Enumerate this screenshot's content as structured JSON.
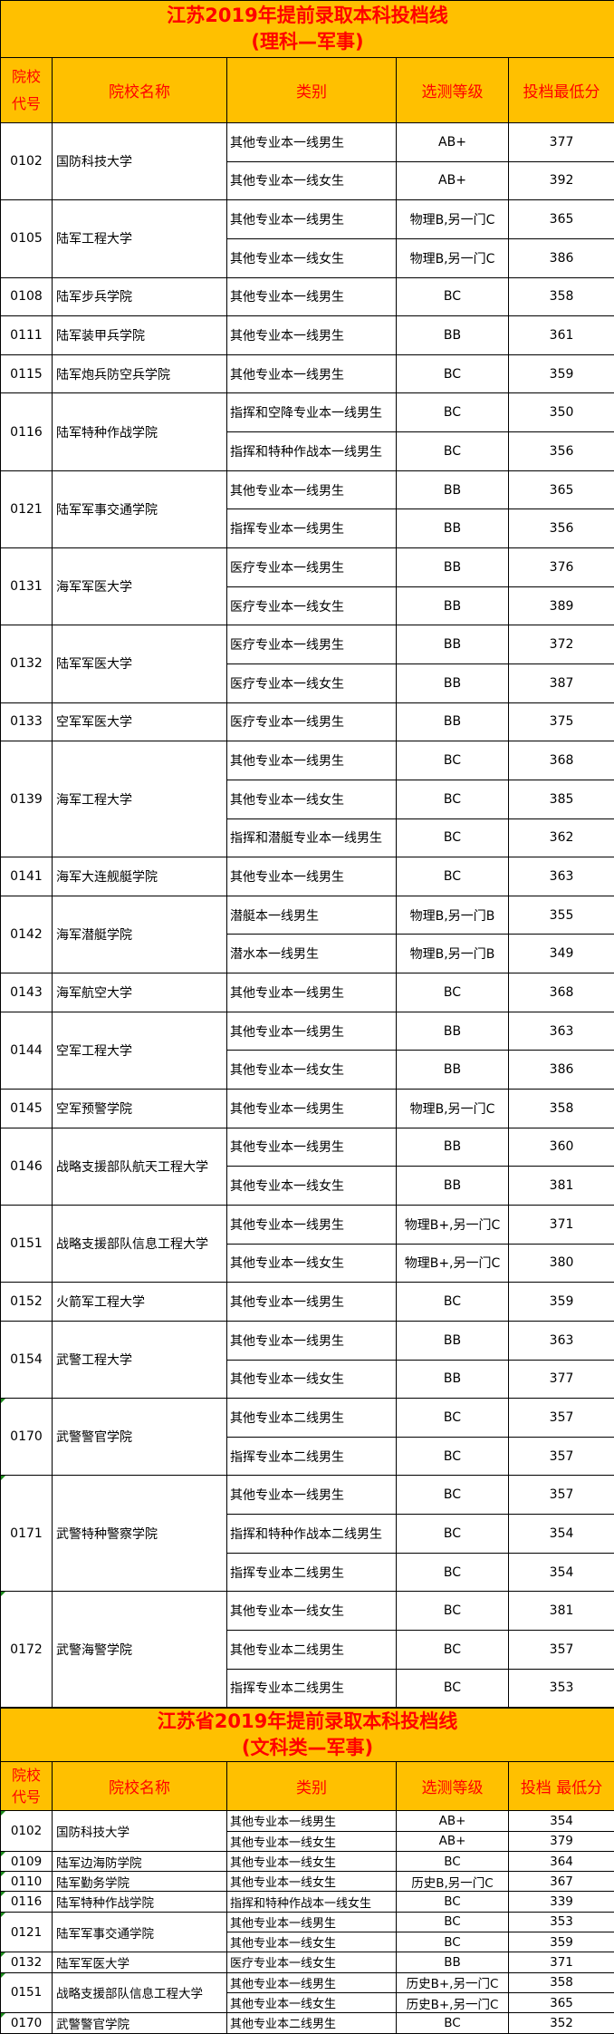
{
  "sections": [
    {
      "title_line1": "江苏2019年提前录取本科投档线",
      "title_line2": "(理科—军事)",
      "headers": {
        "code": "院校代号",
        "name": "院校名称",
        "category": "类别",
        "level": "选测等级",
        "score": "投档最低分"
      },
      "groups": [
        {
          "code": "0102",
          "name": "国防科技大学",
          "rows": [
            [
              "其他专业本一线男生",
              "AB+",
              "377"
            ],
            [
              "其他专业本一线女生",
              "AB+",
              "392"
            ]
          ]
        },
        {
          "code": "0105",
          "name": "陆军工程大学",
          "rows": [
            [
              "其他专业本一线男生",
              "物理B,另一门C",
              "365"
            ],
            [
              "其他专业本一线女生",
              "物理B,另一门C",
              "386"
            ]
          ]
        },
        {
          "code": "0108",
          "name": "陆军步兵学院",
          "rows": [
            [
              "其他专业本一线男生",
              "BC",
              "358"
            ]
          ]
        },
        {
          "code": "0111",
          "name": "陆军装甲兵学院",
          "rows": [
            [
              "其他专业本一线男生",
              "BB",
              "361"
            ]
          ]
        },
        {
          "code": "0115",
          "name": "陆军炮兵防空兵学院",
          "rows": [
            [
              "其他专业本一线男生",
              "BC",
              "359"
            ]
          ]
        },
        {
          "code": "0116",
          "name": "陆军特种作战学院",
          "rows": [
            [
              "指挥和空降专业本一线男生",
              "BC",
              "350"
            ],
            [
              "指挥和特种作战本一线男生",
              "BC",
              "356"
            ]
          ]
        },
        {
          "code": "0121",
          "name": "陆军军事交通学院",
          "rows": [
            [
              "其他专业本一线男生",
              "BB",
              "365"
            ],
            [
              "指挥专业本一线男生",
              "BB",
              "356"
            ]
          ]
        },
        {
          "code": "0131",
          "name": "海军军医大学",
          "rows": [
            [
              "医疗专业本一线男生",
              "BB",
              "376"
            ],
            [
              "医疗专业本一线女生",
              "BB",
              "389"
            ]
          ]
        },
        {
          "code": "0132",
          "name": "陆军军医大学",
          "rows": [
            [
              "医疗专业本一线男生",
              "BB",
              "372"
            ],
            [
              "医疗专业本一线女生",
              "BB",
              "387"
            ]
          ]
        },
        {
          "code": "0133",
          "name": "空军军医大学",
          "rows": [
            [
              "医疗专业本一线男生",
              "BB",
              "375"
            ]
          ]
        },
        {
          "code": "0139",
          "name": "海军工程大学",
          "rows": [
            [
              "其他专业本一线男生",
              "BC",
              "368"
            ],
            [
              "其他专业本一线女生",
              "BC",
              "385"
            ],
            [
              "指挥和潜艇专业本一线男生",
              "BC",
              "362"
            ]
          ]
        },
        {
          "code": "0141",
          "name": "海军大连舰艇学院",
          "rows": [
            [
              "其他专业本一线男生",
              "BC",
              "363"
            ]
          ]
        },
        {
          "code": "0142",
          "name": "海军潜艇学院",
          "rows": [
            [
              "潜艇本一线男生",
              "物理B,另一门B",
              "355"
            ],
            [
              "潜水本一线男生",
              "物理B,另一门B",
              "349"
            ]
          ]
        },
        {
          "code": "0143",
          "name": "海军航空大学",
          "rows": [
            [
              "其他专业本一线男生",
              "BC",
              "368"
            ]
          ]
        },
        {
          "code": "0144",
          "name": "空军工程大学",
          "rows": [
            [
              "其他专业本一线男生",
              "BB",
              "363"
            ],
            [
              "其他专业本一线女生",
              "BB",
              "386"
            ]
          ]
        },
        {
          "code": "0145",
          "name": "空军预警学院",
          "rows": [
            [
              "其他专业本一线男生",
              "物理B,另一门C",
              "358"
            ]
          ]
        },
        {
          "code": "0146",
          "name": "战略支援部队航天工程大学",
          "rows": [
            [
              "其他专业本一线男生",
              "BB",
              "360"
            ],
            [
              "其他专业本一线女生",
              "BB",
              "381"
            ]
          ]
        },
        {
          "code": "0151",
          "name": "战略支援部队信息工程大学",
          "rows": [
            [
              "其他专业本一线男生",
              "物理B+,另一门C",
              "371"
            ],
            [
              "其他专业本一线女生",
              "物理B+,另一门C",
              "380"
            ]
          ]
        },
        {
          "code": "0152",
          "name": "火箭军工程大学",
          "rows": [
            [
              "其他专业本一线男生",
              "BC",
              "359"
            ]
          ]
        },
        {
          "code": "0154",
          "name": "武警工程大学",
          "rows": [
            [
              "其他专业本一线男生",
              "BB",
              "363"
            ],
            [
              "其他专业本一线女生",
              "BB",
              "377"
            ]
          ]
        },
        {
          "code": "0170",
          "name": "武警警官学院",
          "flag": true,
          "rows": [
            [
              "其他专业本二线男生",
              "BC",
              "357"
            ],
            [
              "指挥专业本二线男生",
              "BC",
              "357"
            ]
          ]
        },
        {
          "code": "0171",
          "name": "武警特种警察学院",
          "flag": true,
          "rows": [
            [
              "其他专业本一线男生",
              "BC",
              "357"
            ],
            [
              "指挥和特种作战本二线男生",
              "BC",
              "354"
            ],
            [
              "指挥专业本二线男生",
              "BC",
              "354"
            ]
          ]
        },
        {
          "code": "0172",
          "name": "武警海警学院",
          "flag": true,
          "rows": [
            [
              "其他专业本一线女生",
              "BC",
              "381"
            ],
            [
              "其他专业本二线男生",
              "BC",
              "357"
            ],
            [
              "指挥专业本二线男生",
              "BC",
              "353"
            ]
          ]
        }
      ]
    },
    {
      "title_line1": "江苏省2019年提前录取本科投档线",
      "title_line2": "(文科类—军事)",
      "headers": {
        "code": "院校代号",
        "name": "院校名称",
        "category": "类别",
        "level": "选测等级",
        "score": "投档 最低分"
      },
      "groups": [
        {
          "code": "0102",
          "name": "国防科技大学",
          "flag": true,
          "rows": [
            [
              "其他专业本一线男生",
              "AB+",
              "354"
            ],
            [
              "其他专业本一线女生",
              "AB+",
              "379"
            ]
          ]
        },
        {
          "code": "0109",
          "name": "陆军边海防学院",
          "flag": true,
          "rows": [
            [
              "其他专业本一线女生",
              "BC",
              "364"
            ]
          ]
        },
        {
          "code": "0110",
          "name": "陆军勤务学院",
          "flag": true,
          "rows": [
            [
              "其他专业本一线女生",
              "历史B,另一门C",
              "367"
            ]
          ]
        },
        {
          "code": "0116",
          "name": "陆军特种作战学院",
          "flag": true,
          "rows": [
            [
              "指挥和特种作战本一线女生",
              "BC",
              "339"
            ]
          ]
        },
        {
          "code": "0121",
          "name": "陆军军事交通学院",
          "flag": true,
          "rows": [
            [
              "其他专业本一线男生",
              "BC",
              "353"
            ],
            [
              "其他专业本一线女生",
              "BC",
              "359"
            ]
          ]
        },
        {
          "code": "0132",
          "name": "陆军军医大学",
          "flag": true,
          "rows": [
            [
              "医疗专业本一线女生",
              "BB",
              "371"
            ]
          ]
        },
        {
          "code": "0151",
          "name": "战略支援部队信息工程大学",
          "flag": true,
          "rows": [
            [
              "其他专业本一线男生",
              "历史B+,另一门C",
              "358"
            ],
            [
              "其他专业本一线女生",
              "历史B+,另一门C",
              "365"
            ]
          ]
        },
        {
          "code": "0170",
          "name": "武警警官学院",
          "flag": true,
          "rows": [
            [
              "其他专业本二线男生",
              "BC",
              "352"
            ]
          ]
        }
      ]
    }
  ]
}
